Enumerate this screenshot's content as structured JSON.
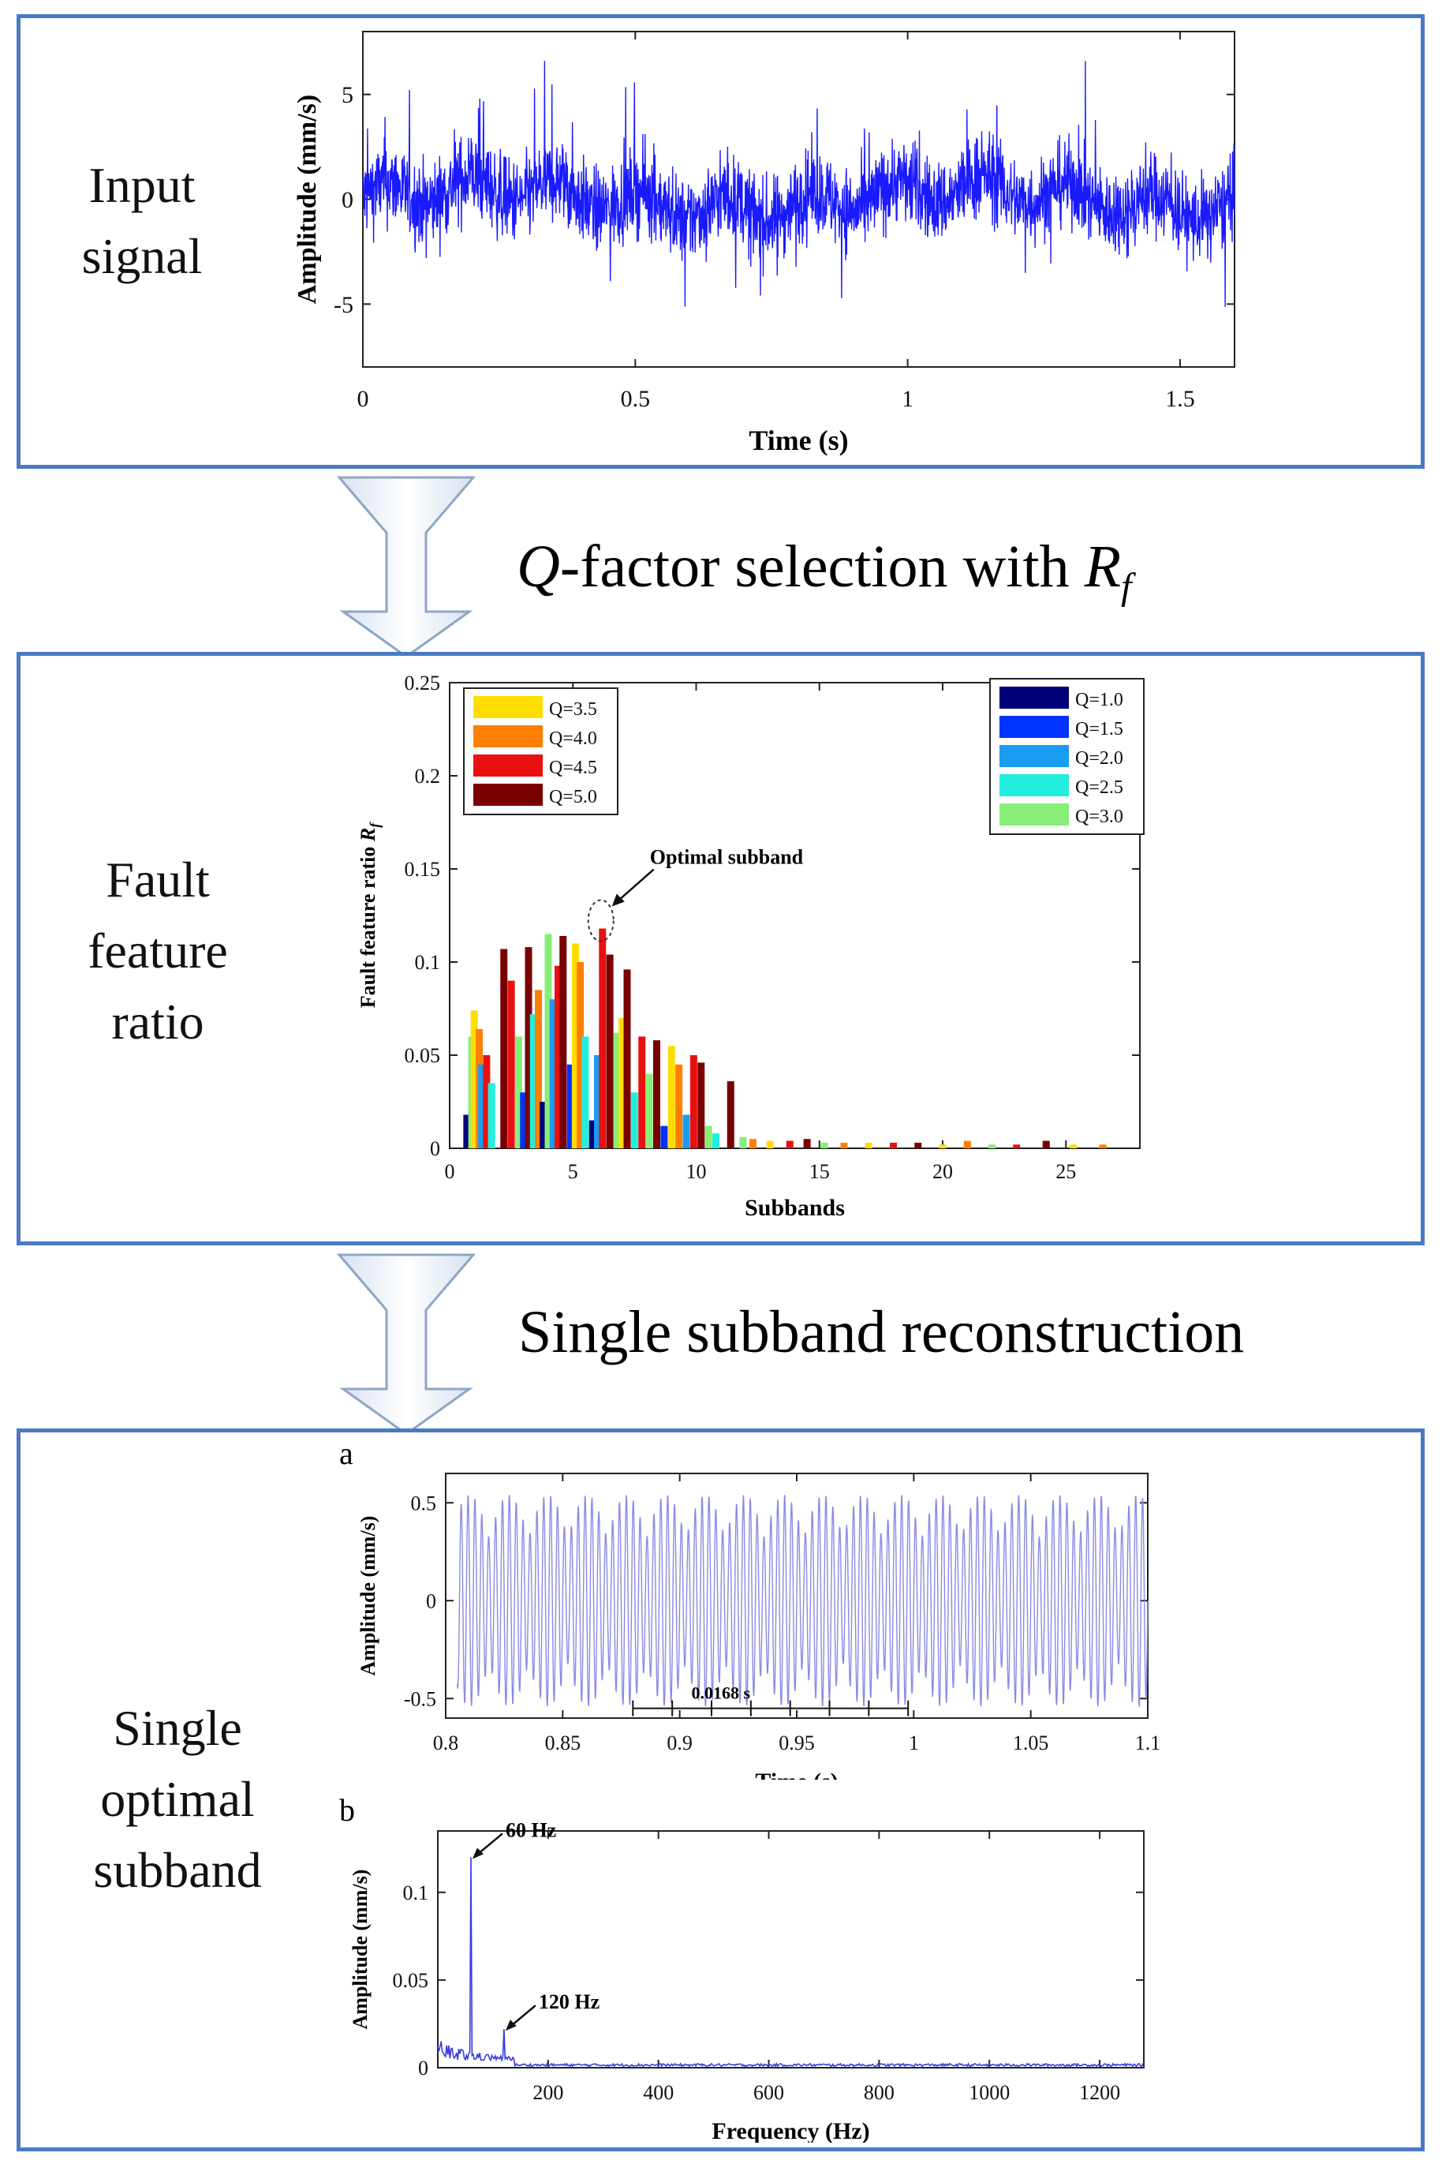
{
  "panels": {
    "input": {
      "label_line1": "Input",
      "label_line2": "signal"
    },
    "fault": {
      "label_line1": "Fault",
      "label_line2": "feature",
      "label_line3": "ratio"
    },
    "single": {
      "label_line1": "Single",
      "label_line2": "optimal",
      "label_line3": "subband"
    }
  },
  "steps": {
    "q_factor": {
      "q": "Q",
      "text": "-factor selection with ",
      "r": "R",
      "sub": "f"
    },
    "reconstruction": {
      "text": "Single subband reconstruction"
    }
  },
  "colors": {
    "panel_border": "#4a7ac4",
    "signal": "#1a1aff",
    "subband_signal": "#8a8ae6"
  },
  "chart_data": [
    {
      "id": "input-signal",
      "type": "line",
      "xlabel": "Time (s)",
      "ylabel": "Amplitude (mm/s)",
      "xlim": [
        0,
        1.6
      ],
      "ylim": [
        -8,
        8
      ],
      "xticks": [
        "0",
        "0.5",
        "1",
        "1.5"
      ],
      "yticks": [
        "5",
        "0",
        "-5"
      ],
      "series": [
        {
          "description": "noisy vibration signal, amplitude about -6 to 6.5 mm/s"
        }
      ]
    },
    {
      "id": "fault-feature-ratio",
      "type": "bar",
      "xlabel": "Subbands",
      "ylabel_prefix": "Fault feature ratio ",
      "ylabel_var": "R",
      "ylabel_sub": "f",
      "xlim": [
        0,
        28
      ],
      "ylim": [
        0,
        0.25
      ],
      "xticks": [
        "0",
        "5",
        "10",
        "15",
        "20",
        "25"
      ],
      "yticks": [
        "0",
        "0.05",
        "0.1",
        "0.15",
        "0.2",
        "0.25"
      ],
      "annotation": "Optimal subband",
      "legend_left": [
        {
          "name": "Q=3.5",
          "color": "#ffdd00"
        },
        {
          "name": "Q=4.0",
          "color": "#ff7f00"
        },
        {
          "name": "Q=4.5",
          "color": "#e81010"
        },
        {
          "name": "Q=5.0",
          "color": "#7a0000"
        }
      ],
      "legend_right": [
        {
          "name": "Q=1.0",
          "color": "#00007a"
        },
        {
          "name": "Q=1.5",
          "color": "#0033ff"
        },
        {
          "name": "Q=2.0",
          "color": "#1a9cf0"
        },
        {
          "name": "Q=2.5",
          "color": "#22eedd"
        },
        {
          "name": "Q=3.0",
          "color": "#88ee77"
        }
      ],
      "bars": [
        {
          "x": 0.7,
          "q": "Q=1.0",
          "y": 0.018
        },
        {
          "x": 0.9,
          "q": "Q=3.0",
          "y": 0.06
        },
        {
          "x": 1.0,
          "q": "Q=3.5",
          "y": 0.074
        },
        {
          "x": 1.2,
          "q": "Q=4.0",
          "y": 0.064
        },
        {
          "x": 1.3,
          "q": "Q=2.0",
          "y": 0.045
        },
        {
          "x": 1.5,
          "q": "Q=4.5",
          "y": 0.05
        },
        {
          "x": 1.7,
          "q": "Q=2.5",
          "y": 0.035
        },
        {
          "x": 2.2,
          "q": "Q=5.0",
          "y": 0.107
        },
        {
          "x": 2.5,
          "q": "Q=4.5",
          "y": 0.09
        },
        {
          "x": 2.8,
          "q": "Q=3.0",
          "y": 0.06
        },
        {
          "x": 3.0,
          "q": "Q=1.5",
          "y": 0.03
        },
        {
          "x": 3.2,
          "q": "Q=5.0",
          "y": 0.108
        },
        {
          "x": 3.4,
          "q": "Q=2.5",
          "y": 0.072
        },
        {
          "x": 3.6,
          "q": "Q=4.0",
          "y": 0.085
        },
        {
          "x": 3.8,
          "q": "Q=1.0",
          "y": 0.025
        },
        {
          "x": 4.0,
          "q": "Q=3.0",
          "y": 0.115
        },
        {
          "x": 4.2,
          "q": "Q=2.0",
          "y": 0.08
        },
        {
          "x": 4.4,
          "q": "Q=4.5",
          "y": 0.098
        },
        {
          "x": 4.6,
          "q": "Q=5.0",
          "y": 0.114
        },
        {
          "x": 4.9,
          "q": "Q=1.5",
          "y": 0.045
        },
        {
          "x": 5.1,
          "q": "Q=3.5",
          "y": 0.11
        },
        {
          "x": 5.3,
          "q": "Q=4.0",
          "y": 0.1
        },
        {
          "x": 5.5,
          "q": "Q=2.5",
          "y": 0.06
        },
        {
          "x": 5.8,
          "q": "Q=1.0",
          "y": 0.015
        },
        {
          "x": 6.0,
          "q": "Q=2.0",
          "y": 0.05
        },
        {
          "x": 6.2,
          "q": "Q=4.5",
          "y": 0.118
        },
        {
          "x": 6.5,
          "q": "Q=5.0",
          "y": 0.104
        },
        {
          "x": 6.8,
          "q": "Q=3.0",
          "y": 0.062
        },
        {
          "x": 7.0,
          "q": "Q=3.5",
          "y": 0.07
        },
        {
          "x": 7.2,
          "q": "Q=5.0",
          "y": 0.096
        },
        {
          "x": 7.5,
          "q": "Q=2.5",
          "y": 0.03
        },
        {
          "x": 7.8,
          "q": "Q=4.5",
          "y": 0.06
        },
        {
          "x": 8.1,
          "q": "Q=3.0",
          "y": 0.04
        },
        {
          "x": 8.4,
          "q": "Q=5.0",
          "y": 0.058
        },
        {
          "x": 8.7,
          "q": "Q=1.5",
          "y": 0.012
        },
        {
          "x": 9.0,
          "q": "Q=3.5",
          "y": 0.055
        },
        {
          "x": 9.3,
          "q": "Q=4.0",
          "y": 0.045
        },
        {
          "x": 9.6,
          "q": "Q=2.0",
          "y": 0.018
        },
        {
          "x": 9.9,
          "q": "Q=4.5",
          "y": 0.05
        },
        {
          "x": 10.2,
          "q": "Q=5.0",
          "y": 0.046
        },
        {
          "x": 10.5,
          "q": "Q=3.0",
          "y": 0.012
        },
        {
          "x": 10.8,
          "q": "Q=2.5",
          "y": 0.008
        },
        {
          "x": 11.4,
          "q": "Q=5.0",
          "y": 0.036
        },
        {
          "x": 11.9,
          "q": "Q=3.0",
          "y": 0.006
        },
        {
          "x": 12.3,
          "q": "Q=4.0",
          "y": 0.005
        },
        {
          "x": 13.0,
          "q": "Q=3.5",
          "y": 0.004
        },
        {
          "x": 13.8,
          "q": "Q=4.5",
          "y": 0.004
        },
        {
          "x": 14.5,
          "q": "Q=5.0",
          "y": 0.005
        },
        {
          "x": 15.2,
          "q": "Q=3.0",
          "y": 0.003
        },
        {
          "x": 16.0,
          "q": "Q=4.0",
          "y": 0.003
        },
        {
          "x": 17.0,
          "q": "Q=3.5",
          "y": 0.003
        },
        {
          "x": 18.0,
          "q": "Q=4.5",
          "y": 0.003
        },
        {
          "x": 19.0,
          "q": "Q=5.0",
          "y": 0.003
        },
        {
          "x": 20.0,
          "q": "Q=3.5",
          "y": 0.002
        },
        {
          "x": 21.0,
          "q": "Q=4.0",
          "y": 0.004
        },
        {
          "x": 22.0,
          "q": "Q=3.0",
          "y": 0.002
        },
        {
          "x": 23.0,
          "q": "Q=4.5",
          "y": 0.002
        },
        {
          "x": 24.2,
          "q": "Q=5.0",
          "y": 0.004
        },
        {
          "x": 25.3,
          "q": "Q=3.5",
          "y": 0.002
        },
        {
          "x": 26.5,
          "q": "Q=4.0",
          "y": 0.002
        }
      ]
    },
    {
      "id": "subband-time",
      "type": "line",
      "panel_tag": "a",
      "xlabel": "Time (s)",
      "ylabel": "Amplitude (mm/s)",
      "xlim": [
        0.8,
        1.1
      ],
      "ylim": [
        -0.6,
        0.65
      ],
      "xticks": [
        "0.8",
        "0.85",
        "0.9",
        "0.95",
        "1",
        "1.05",
        "1.1"
      ],
      "yticks": [
        "0.5",
        "0",
        "-0.5"
      ],
      "annotation": "0.0168 s",
      "period_markers_s": [
        0.88,
        0.8968,
        0.9136,
        0.9304,
        0.9472,
        0.964,
        0.9808,
        0.9976
      ]
    },
    {
      "id": "subband-spectrum",
      "type": "line",
      "panel_tag": "b",
      "xlabel": "Frequency (Hz)",
      "ylabel": "Amplitude (mm/s)",
      "xlim": [
        0,
        1280
      ],
      "ylim": [
        0,
        0.135
      ],
      "xticks": [
        "200",
        "400",
        "600",
        "800",
        "1000",
        "1200"
      ],
      "yticks": [
        "0.1",
        "0.05",
        "0"
      ],
      "peaks": [
        {
          "freq": 60,
          "amp": 0.12,
          "label": "60 Hz"
        },
        {
          "freq": 120,
          "amp": 0.022,
          "label": "120 Hz"
        }
      ]
    }
  ]
}
